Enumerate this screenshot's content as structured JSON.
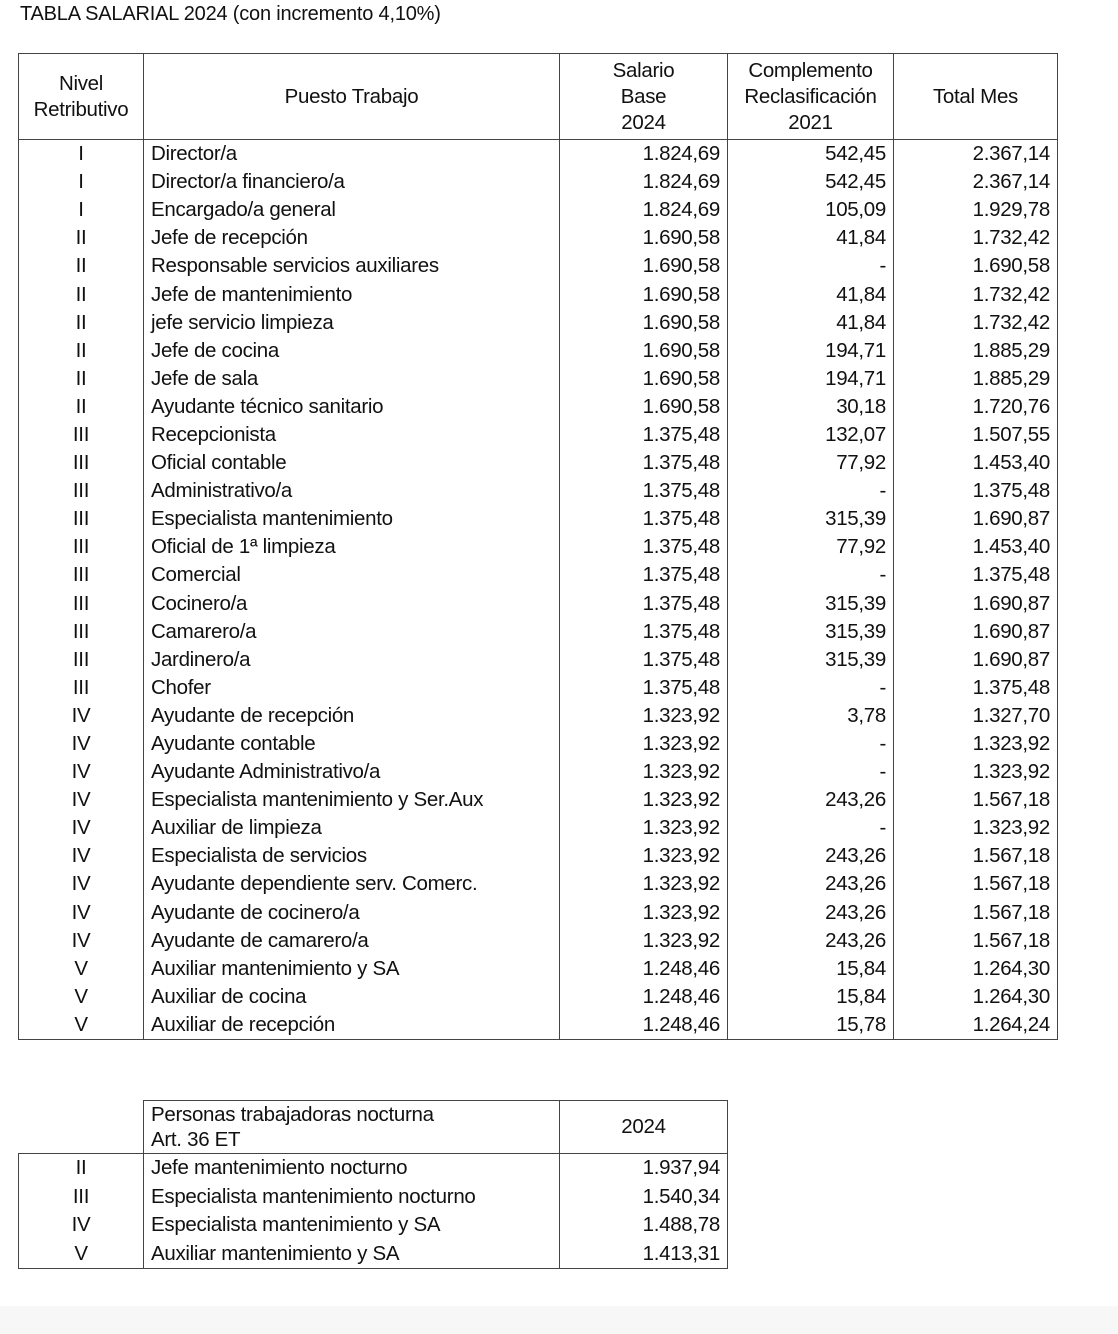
{
  "title": "TABLA SALARIAL 2024 (con incremento 4,10%)",
  "main_table": {
    "headers": [
      "Nivel\nRetributivo",
      "Puesto Trabajo",
      "Salario\nBase\n2024",
      "Complemento\nReclasificación\n2021",
      "Total Mes"
    ],
    "rows": [
      [
        "I",
        "Director/a",
        "1.824,69",
        "542,45",
        "2.367,14"
      ],
      [
        "I",
        "Director/a financiero/a",
        "1.824,69",
        "542,45",
        "2.367,14"
      ],
      [
        "I",
        "Encargado/a general",
        "1.824,69",
        "105,09",
        "1.929,78"
      ],
      [
        "II",
        "Jefe de recepción",
        "1.690,58",
        "41,84",
        "1.732,42"
      ],
      [
        "II",
        "Responsable servicios auxiliares",
        "1.690,58",
        "-",
        "1.690,58"
      ],
      [
        "II",
        "Jefe de mantenimiento",
        "1.690,58",
        "41,84",
        "1.732,42"
      ],
      [
        "II",
        "jefe servicio limpieza",
        "1.690,58",
        "41,84",
        "1.732,42"
      ],
      [
        "II",
        "Jefe de cocina",
        "1.690,58",
        "194,71",
        "1.885,29"
      ],
      [
        "II",
        "Jefe de sala",
        "1.690,58",
        "194,71",
        "1.885,29"
      ],
      [
        "II",
        "Ayudante técnico sanitario",
        "1.690,58",
        "30,18",
        "1.720,76"
      ],
      [
        "III",
        "Recepcionista",
        "1.375,48",
        "132,07",
        "1.507,55"
      ],
      [
        "III",
        "Oficial contable",
        "1.375,48",
        "77,92",
        "1.453,40"
      ],
      [
        "III",
        "Administrativo/a",
        "1.375,48",
        "-",
        "1.375,48"
      ],
      [
        "III",
        "Especialista mantenimiento",
        "1.375,48",
        "315,39",
        "1.690,87"
      ],
      [
        "III",
        "Oficial de 1ª limpieza",
        "1.375,48",
        "77,92",
        "1.453,40"
      ],
      [
        "III",
        "Comercial",
        "1.375,48",
        "-",
        "1.375,48"
      ],
      [
        "III",
        "Cocinero/a",
        "1.375,48",
        "315,39",
        "1.690,87"
      ],
      [
        "III",
        "Camarero/a",
        "1.375,48",
        "315,39",
        "1.690,87"
      ],
      [
        "III",
        "Jardinero/a",
        "1.375,48",
        "315,39",
        "1.690,87"
      ],
      [
        "III",
        "Chofer",
        "1.375,48",
        "-",
        "1.375,48"
      ],
      [
        "IV",
        "Ayudante de recepción",
        "1.323,92",
        "3,78",
        "1.327,70"
      ],
      [
        "IV",
        "Ayudante contable",
        "1.323,92",
        "-",
        "1.323,92"
      ],
      [
        "IV",
        "Ayudante Administrativo/a",
        "1.323,92",
        "-",
        "1.323,92"
      ],
      [
        "IV",
        "Especialista mantenimiento y Ser.Aux",
        "1.323,92",
        "243,26",
        "1.567,18"
      ],
      [
        "IV",
        "Auxiliar de limpieza",
        "1.323,92",
        "-",
        "1.323,92"
      ],
      [
        "IV",
        "Especialista de servicios",
        "1.323,92",
        "243,26",
        "1.567,18"
      ],
      [
        "IV",
        "Ayudante dependiente serv. Comerc.",
        "1.323,92",
        "243,26",
        "1.567,18"
      ],
      [
        "IV",
        "Ayudante de cocinero/a",
        "1.323,92",
        "243,26",
        "1.567,18"
      ],
      [
        "IV",
        "Ayudante de camarero/a",
        "1.323,92",
        "243,26",
        "1.567,18"
      ],
      [
        "V",
        "Auxiliar mantenimiento y SA",
        "1.248,46",
        "15,84",
        "1.264,30"
      ],
      [
        "V",
        "Auxiliar de cocina",
        "1.248,46",
        "15,84",
        "1.264,30"
      ],
      [
        "V",
        "Auxiliar de recepción",
        "1.248,46",
        "15,78",
        "1.264,24"
      ]
    ]
  },
  "night_table": {
    "headers": [
      "",
      "Personas trabajadoras nocturna\nArt. 36 ET",
      "2024"
    ],
    "rows": [
      [
        "II",
        "Jefe mantenimiento nocturno",
        "1.937,94"
      ],
      [
        "III",
        "Especialista mantenimiento nocturno",
        "1.540,34"
      ],
      [
        "IV",
        "Especialista mantenimiento y SA",
        "1.488,78"
      ],
      [
        "V",
        "Auxiliar mantenimiento y SA",
        "1.413,31"
      ]
    ]
  }
}
